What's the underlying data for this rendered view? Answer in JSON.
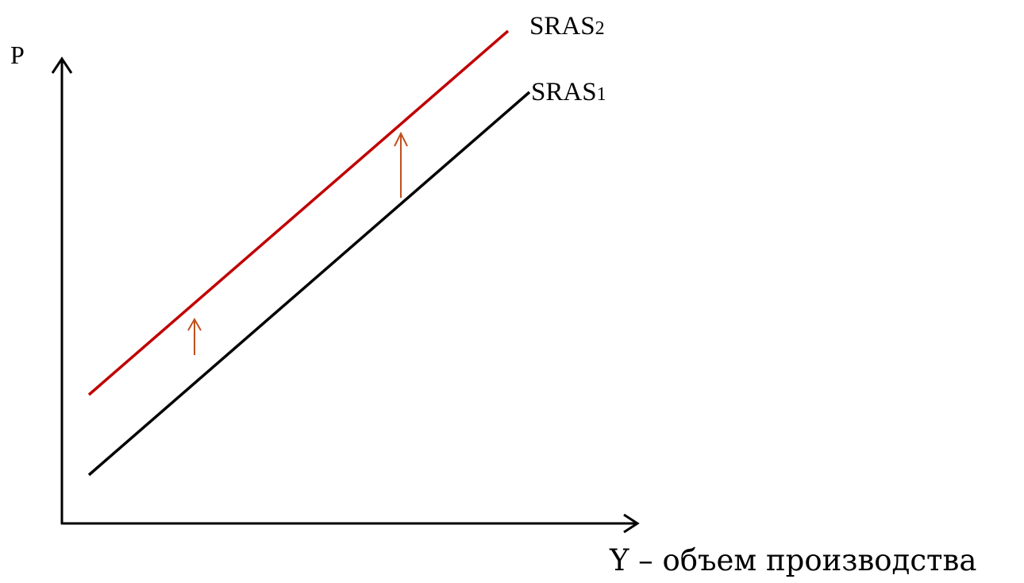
{
  "axes": {
    "y_label": "P",
    "x_label": "Y – объем производства"
  },
  "curves": [
    {
      "id": "sras1",
      "label": "SRAS1",
      "color": "#000000"
    },
    {
      "id": "sras2",
      "label": "SRAS2",
      "color": "#c00000"
    }
  ],
  "shift_arrow_color": "#c0501e"
}
